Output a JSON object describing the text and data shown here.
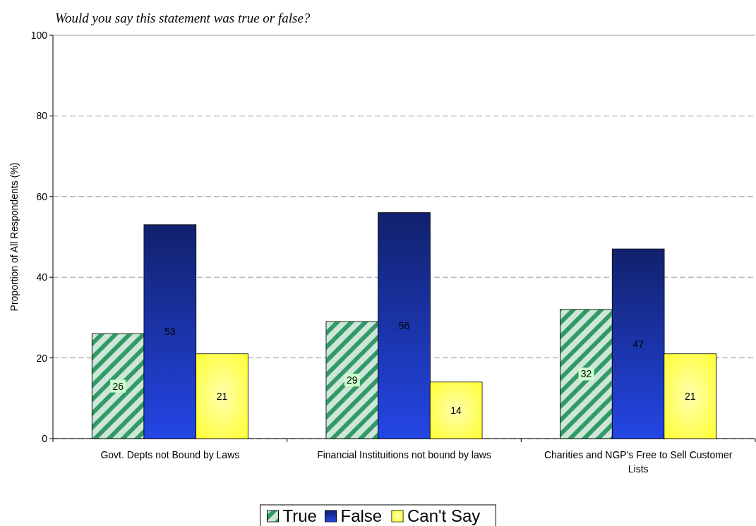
{
  "chart_data": {
    "type": "bar",
    "title": "Would you say this statement was true or false?",
    "ylabel": "Proportion of All Respondents  (%)",
    "categories": [
      "Govt. Depts not Bound by Laws",
      "Financial Instituitions not bound by laws",
      "Charities and NGP's Free to Sell Customer Lists"
    ],
    "series": [
      {
        "name": "True",
        "color": "#339966",
        "values": [
          26,
          29,
          32
        ]
      },
      {
        "name": "False",
        "color": "#1a33a6",
        "values": [
          53,
          56,
          47
        ]
      },
      {
        "name": "Can't Say",
        "color": "#ffff33",
        "values": [
          21,
          14,
          21
        ]
      }
    ],
    "ylim": [
      0,
      100
    ],
    "yticks": [
      0,
      20,
      40,
      60,
      80,
      100
    ],
    "grid": "y",
    "legend": "bottom",
    "data_labels": true
  }
}
